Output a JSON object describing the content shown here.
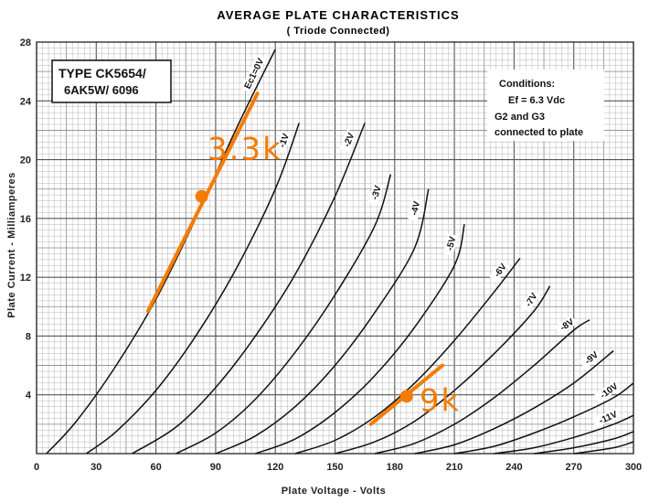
{
  "chart_data": {
    "type": "line",
    "title": "AVERAGE PLATE CHARACTERISTICS",
    "subtitle": "( Triode Connected)",
    "xlabel": "Plate Voltage - Volts",
    "ylabel": "Plate Current - Milliamperes",
    "xlim": [
      0,
      300
    ],
    "ylim": [
      0,
      28
    ],
    "xticks": [
      0,
      30,
      60,
      90,
      120,
      150,
      180,
      210,
      240,
      270,
      300
    ],
    "yticks": [
      4,
      8,
      12,
      16,
      20,
      24,
      28
    ],
    "grid": true,
    "type_box": [
      "TYPE  CK5654/",
      "6AK5W/ 6096"
    ],
    "conditions": [
      "Conditions:",
      "Ef = 6.3 Vdc",
      "G2 and G3",
      "connected to plate"
    ],
    "series": [
      {
        "name": "Ec1=0V",
        "x": [
          5,
          20,
          40,
          60,
          80,
          100,
          120
        ],
        "y": [
          0,
          2.2,
          6.0,
          10.5,
          16.0,
          22.0,
          27.5
        ]
      },
      {
        "name": "-1V",
        "x": [
          25,
          40,
          60,
          80,
          100,
          120,
          132
        ],
        "y": [
          0,
          1.5,
          4.3,
          8.0,
          12.5,
          18.0,
          22.5
        ]
      },
      {
        "name": "-2V",
        "x": [
          48,
          70,
          90,
          110,
          130,
          150,
          165
        ],
        "y": [
          0,
          1.8,
          4.5,
          8.0,
          12.2,
          17.5,
          22.5
        ]
      },
      {
        "name": "-3V",
        "x": [
          70,
          90,
          110,
          130,
          150,
          170,
          178
        ],
        "y": [
          0,
          1.4,
          3.7,
          6.9,
          10.8,
          15.5,
          19.0
        ]
      },
      {
        "name": "-4V",
        "x": [
          90,
          110,
          130,
          150,
          170,
          190,
          197
        ],
        "y": [
          0,
          1.2,
          3.2,
          6.0,
          9.6,
          14.0,
          18.0
        ]
      },
      {
        "name": "-5V",
        "x": [
          110,
          130,
          150,
          170,
          190,
          210,
          215
        ],
        "y": [
          0,
          1.0,
          2.8,
          5.3,
          8.6,
          12.8,
          15.6
        ]
      },
      {
        "name": "-6V",
        "x": [
          130,
          150,
          170,
          190,
          210,
          230,
          243
        ],
        "y": [
          0,
          0.9,
          2.5,
          4.8,
          7.7,
          11.0,
          13.3
        ]
      },
      {
        "name": "-7V",
        "x": [
          150,
          170,
          190,
          210,
          230,
          250,
          258
        ],
        "y": [
          0,
          0.8,
          2.2,
          4.3,
          6.8,
          9.7,
          11.4
        ]
      },
      {
        "name": "-8V",
        "x": [
          170,
          190,
          210,
          230,
          250,
          270,
          278
        ],
        "y": [
          0,
          0.7,
          2.0,
          3.8,
          6.0,
          8.4,
          9.1
        ]
      },
      {
        "name": "-9V",
        "x": [
          190,
          210,
          230,
          250,
          270,
          290
        ],
        "y": [
          0,
          0.6,
          1.7,
          3.1,
          4.8,
          7.0
        ]
      },
      {
        "name": "-10V",
        "x": [
          210,
          230,
          250,
          270,
          290,
          300
        ],
        "y": [
          0,
          0.5,
          1.4,
          2.5,
          3.8,
          4.8
        ]
      },
      {
        "name": "-11V",
        "x": [
          230,
          250,
          270,
          290,
          300
        ],
        "y": [
          0,
          0.4,
          1.1,
          2.0,
          2.6
        ]
      },
      {
        "name": "",
        "x": [
          250,
          270,
          290,
          300
        ],
        "y": [
          0,
          0.4,
          1.0,
          1.5
        ]
      },
      {
        "name": "",
        "x": [
          270,
          290,
          300
        ],
        "y": [
          0,
          0.4,
          0.8
        ]
      }
    ],
    "load_lines": [
      {
        "label": "3.3k",
        "x": [
          56,
          111
        ],
        "y": [
          9.7,
          24.5
        ],
        "point": [
          83,
          17.5
        ],
        "color": "#f57c00"
      },
      {
        "label": "9k",
        "x": [
          168,
          204
        ],
        "y": [
          2.0,
          6.0
        ],
        "point": [
          186,
          3.9
        ],
        "color": "#f57c00"
      }
    ]
  }
}
